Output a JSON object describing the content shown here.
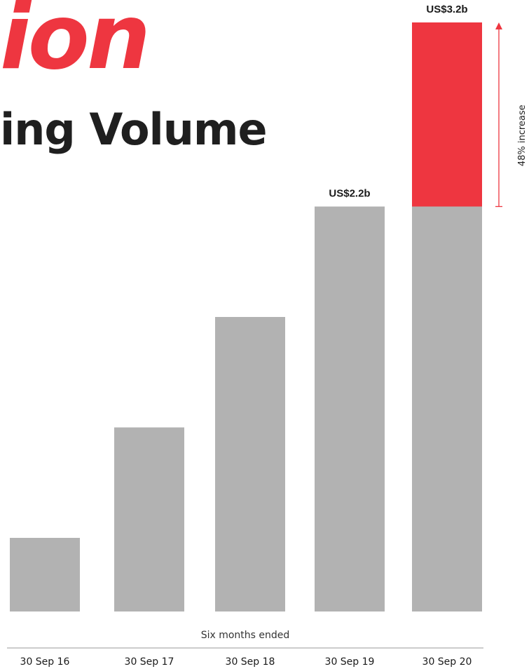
{
  "header": {
    "title_fragment": "ion",
    "subtitle_fragment": "ing Volume"
  },
  "chart_data": {
    "type": "bar",
    "title": "",
    "xlabel": "Six months ended",
    "ylabel": "",
    "categories": [
      "30 Sep 16",
      "30 Sep 17",
      "30 Sep 18",
      "30 Sep 19",
      "30 Sep 20"
    ],
    "values": [
      0.4,
      1.0,
      1.6,
      2.2,
      3.2
    ],
    "value_labels": [
      "",
      "",
      "",
      "US$2.2b",
      "US$3.2b"
    ],
    "ylim": [
      0,
      3.2
    ],
    "grid": false,
    "legend": "none",
    "highlight": {
      "category": "30 Sep 20",
      "from": 2.2,
      "to": 3.2,
      "label": "48% increase",
      "color": "#ee3640"
    },
    "colors": {
      "bar": "#b2b2b2",
      "highlight": "#ee3640",
      "axis": "#999999",
      "text": "#1a1a1a"
    }
  }
}
